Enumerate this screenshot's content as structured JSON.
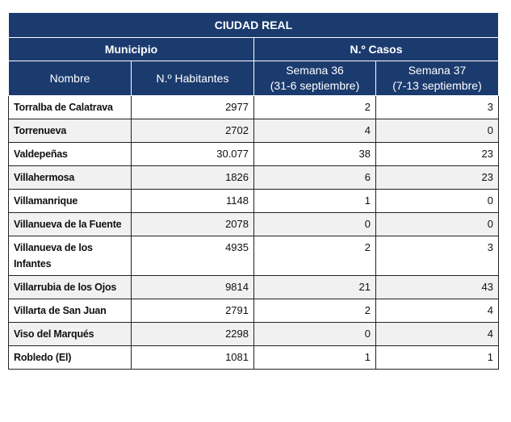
{
  "table": {
    "title": "CIUDAD REAL",
    "groups": [
      "Municipio",
      "N.º Casos"
    ],
    "columns": [
      {
        "line1": "Nombre"
      },
      {
        "line1": "N.º Habitantes"
      },
      {
        "line1": "Semana 36",
        "line2": "(31-6 septiembre)"
      },
      {
        "line1": "Semana 37",
        "line2": "(7-13 septiembre)"
      }
    ],
    "rows": [
      [
        "Torralba de Calatrava",
        "2977",
        "2",
        "3"
      ],
      [
        "Torrenueva",
        "2702",
        "4",
        "0"
      ],
      [
        "Valdepeñas",
        "30.077",
        "38",
        "23"
      ],
      [
        "Villahermosa",
        "1826",
        "6",
        "23"
      ],
      [
        "Villamanrique",
        "1148",
        "1",
        "0"
      ],
      [
        "Villanueva de la Fuente",
        "2078",
        "0",
        "0"
      ],
      [
        "Villanueva de los Infantes",
        "4935",
        "2",
        "3"
      ],
      [
        "Villarrubia de los Ojos",
        "9814",
        "21",
        "43"
      ],
      [
        "Villarta de San Juan",
        "2791",
        "2",
        "4"
      ],
      [
        "Viso del Marqués",
        "2298",
        "0",
        "4"
      ],
      [
        "Robledo (El)",
        "1081",
        "1",
        "1"
      ]
    ]
  }
}
